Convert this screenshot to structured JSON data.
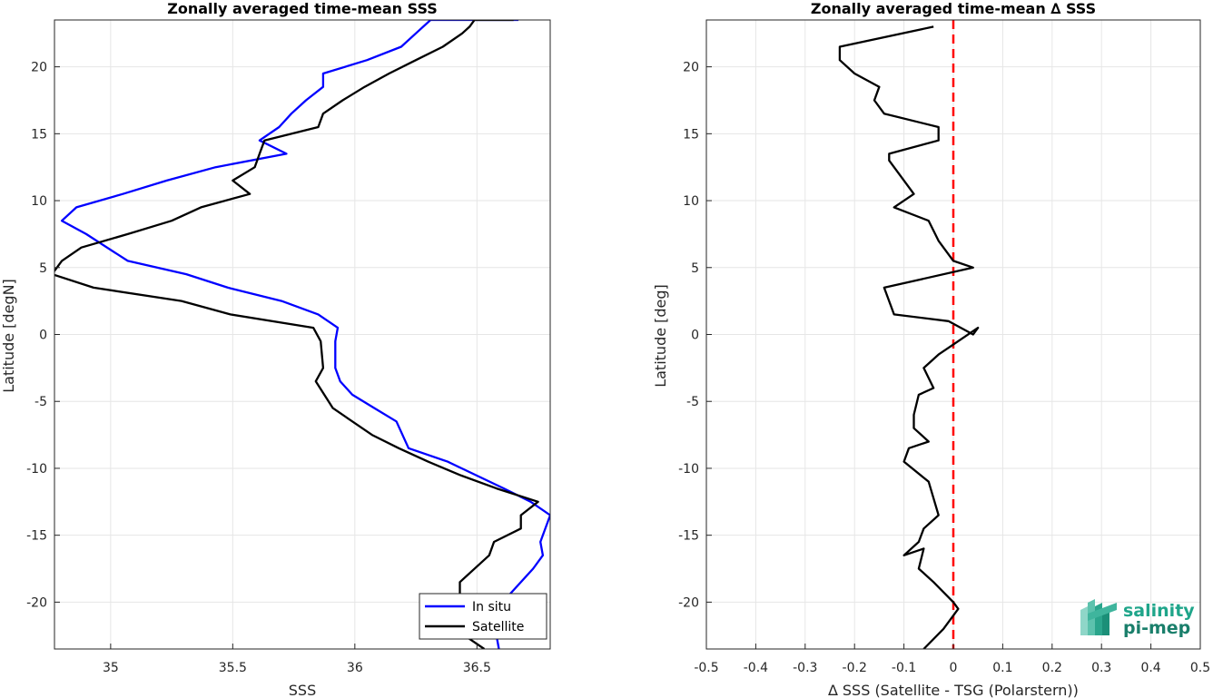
{
  "chart_data": [
    {
      "type": "line",
      "title": "Zonally averaged time-mean SSS",
      "xlabel": "SSS",
      "ylabel": "Latitude [degN]",
      "xlim": [
        34.77,
        36.8
      ],
      "ylim": [
        -23.5,
        23.5
      ],
      "xticks": [
        "35",
        "35.5",
        "36",
        "36.5"
      ],
      "yticks": [
        "20",
        "15",
        "10",
        "5",
        "0",
        "-5",
        "-10",
        "-15",
        "-20"
      ],
      "grid": true,
      "legend_position": "bottom-right",
      "series": [
        {
          "name": "In situ",
          "color": "#0000ff",
          "x": [
            36.59,
            36.57,
            36.63,
            36.73,
            36.77,
            36.76,
            36.8,
            36.72,
            36.61,
            36.38,
            36.22,
            36.17,
            36.08,
            35.99,
            35.94,
            35.92,
            35.92,
            35.93,
            35.85,
            35.7,
            35.48,
            35.31,
            35.07,
            34.9,
            34.8,
            34.86,
            35.05,
            35.23,
            35.43,
            35.72,
            35.61,
            35.69,
            35.74,
            35.8,
            35.87,
            35.87,
            36.05,
            36.19,
            36.25,
            36.31,
            36.35,
            36.49,
            36.58,
            36.48,
            36.67
          ],
          "y": [
            -23.5,
            -21.5,
            -19.5,
            -17.5,
            -16.5,
            -15.5,
            -13.5,
            -12.5,
            -11.5,
            -9.5,
            -8.5,
            -6.5,
            -5.5,
            -4.5,
            -3.5,
            -2.5,
            -0.5,
            0.5,
            1.5,
            2.5,
            3.5,
            4.5,
            5.5,
            7.5,
            8.5,
            9.5,
            10.5,
            11.5,
            12.5,
            13.5,
            14.5,
            15.5,
            16.5,
            17.5,
            18.5,
            19.5,
            20.5,
            21.5,
            22.5,
            23.5,
            23.5,
            23.5,
            23.5,
            23.5,
            23.5
          ]
        },
        {
          "name": "Satellite",
          "color": "#000000",
          "x": [
            36.53,
            36.45,
            36.43,
            36.43,
            36.55,
            36.57,
            36.68,
            36.68,
            36.75,
            36.58,
            36.43,
            36.3,
            36.18,
            36.07,
            35.91,
            35.84,
            35.87,
            35.86,
            35.83,
            35.49,
            35.29,
            34.93,
            34.76,
            34.8,
            34.88,
            35.07,
            35.25,
            35.37,
            35.57,
            35.5,
            35.59,
            35.61,
            35.63,
            35.85,
            35.87,
            35.95,
            36.04,
            36.14,
            36.25,
            36.36,
            36.44,
            36.47,
            36.49,
            36.65
          ],
          "y": [
            -23.5,
            -22.5,
            -20.5,
            -18.5,
            -16.5,
            -15.5,
            -14.5,
            -13.5,
            -12.5,
            -11.5,
            -10.5,
            -9.5,
            -8.5,
            -7.5,
            -5.5,
            -3.5,
            -2.5,
            -0.5,
            0.5,
            1.5,
            2.5,
            3.5,
            4.5,
            5.5,
            6.5,
            7.5,
            8.5,
            9.5,
            10.5,
            11.5,
            12.5,
            13.5,
            14.5,
            15.5,
            16.5,
            17.5,
            18.5,
            19.5,
            20.5,
            21.5,
            22.5,
            23.0,
            23.5,
            23.5
          ]
        }
      ]
    },
    {
      "type": "line",
      "title": "Zonally averaged time-mean ∆ SSS",
      "xlabel": "∆ SSS (Satellite - TSG (Polarstern))",
      "ylabel": "Latitude [deg]",
      "xlim": [
        -0.5,
        0.5
      ],
      "ylim": [
        -23.5,
        23.5
      ],
      "xticks": [
        "-0.5",
        "-0.4",
        "-0.3",
        "-0.2",
        "-0.1",
        "0",
        "0.1",
        "0.2",
        "0.3",
        "0.4",
        "0.5"
      ],
      "yticks": [
        "20",
        "15",
        "10",
        "5",
        "0",
        "-5",
        "-10",
        "-15",
        "-20"
      ],
      "grid": true,
      "reference_line": {
        "x": 0,
        "color": "#ff0000",
        "style": "dashed"
      },
      "series": [
        {
          "name": "",
          "color": "#000000",
          "x": [
            -0.06,
            -0.02,
            0.01,
            0.0,
            -0.04,
            -0.07,
            -0.06,
            -0.1,
            -0.07,
            -0.06,
            -0.03,
            -0.05,
            -0.1,
            -0.09,
            -0.05,
            -0.08,
            -0.08,
            -0.07,
            -0.04,
            -0.06,
            -0.03,
            0.05,
            0.04,
            -0.01,
            -0.12,
            -0.14,
            0.04,
            0.0,
            -0.03,
            -0.05,
            -0.12,
            -0.08,
            -0.11,
            -0.13,
            -0.13,
            -0.03,
            -0.03,
            -0.14,
            -0.16,
            -0.15,
            -0.2,
            -0.23,
            -0.23,
            -0.04,
            -0.04
          ],
          "y": [
            -23.5,
            -22.0,
            -20.5,
            -20.0,
            -18.5,
            -17.5,
            -16.0,
            -16.5,
            -15.5,
            -14.5,
            -13.5,
            -11.0,
            -9.5,
            -8.5,
            -8.0,
            -7.0,
            -6.0,
            -4.5,
            -4.0,
            -2.5,
            -1.5,
            0.5,
            0.0,
            1.0,
            1.5,
            3.5,
            5.0,
            5.5,
            7.0,
            8.5,
            9.5,
            10.5,
            12.0,
            13.0,
            13.5,
            14.5,
            15.5,
            16.5,
            17.5,
            18.5,
            19.5,
            20.5,
            21.5,
            23.0,
            23.0
          ]
        }
      ]
    }
  ],
  "legend": {
    "items": [
      "In situ",
      "Satellite"
    ]
  },
  "logo": {
    "line1": "salinity",
    "line2": "pi-mep"
  }
}
